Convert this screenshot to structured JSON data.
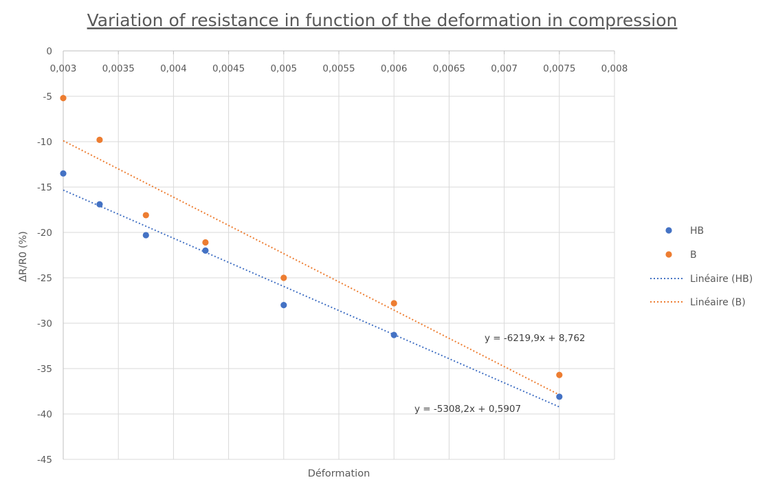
{
  "chart_data": {
    "type": "scatter",
    "title": "Variation of resistance in function of the deformation in compression",
    "xlabel": "Déformation",
    "ylabel": "ΔR/R0 (%)",
    "xlim": [
      0.003,
      0.008
    ],
    "ylim": [
      -45,
      0
    ],
    "x_ticks": [
      0.003,
      0.0035,
      0.004,
      0.0045,
      0.005,
      0.0055,
      0.006,
      0.0065,
      0.007,
      0.0075,
      0.008
    ],
    "x_tick_labels": [
      "0,003",
      "0,0035",
      "0,004",
      "0,0045",
      "0,005",
      "0,0055",
      "0,006",
      "0,0065",
      "0,007",
      "0,0075",
      "0,008"
    ],
    "y_ticks": [
      0,
      -5,
      -10,
      -15,
      -20,
      -25,
      -30,
      -35,
      -40,
      -45
    ],
    "y_tick_labels": [
      "0",
      "-5",
      "-10",
      "-15",
      "-20",
      "-25",
      "-30",
      "-35",
      "-40",
      "-45"
    ],
    "grid": true,
    "legend_position": "right",
    "series": [
      {
        "name": "HB",
        "color": "#4472c4",
        "points": [
          [
            0.003,
            -13.5
          ],
          [
            0.00333,
            -16.9
          ],
          [
            0.00375,
            -20.3
          ],
          [
            0.00429,
            -22.0
          ],
          [
            0.005,
            -28.0
          ],
          [
            0.006,
            -31.3
          ],
          [
            0.0075,
            -38.1
          ]
        ]
      },
      {
        "name": "B",
        "color": "#ed7d31",
        "points": [
          [
            0.003,
            -5.2
          ],
          [
            0.00333,
            -9.8
          ],
          [
            0.00375,
            -18.1
          ],
          [
            0.00429,
            -21.1
          ],
          [
            0.005,
            -25.0
          ],
          [
            0.006,
            -27.8
          ],
          [
            0.0075,
            -35.7
          ]
        ]
      }
    ],
    "trendlines": [
      {
        "name": "Linéaire (HB)",
        "color": "#4472c4",
        "slope": -5308.2,
        "intercept": 0.5907,
        "x_range": [
          0.003,
          0.0075
        ],
        "equation": "y = -5308,2x + 0,5907"
      },
      {
        "name": "Linéaire (B)",
        "color": "#ed7d31",
        "slope": -6219.9,
        "intercept": 8.762,
        "x_range": [
          0.003,
          0.0075
        ],
        "equation": "y = -6219,9x + 8,762"
      }
    ]
  }
}
